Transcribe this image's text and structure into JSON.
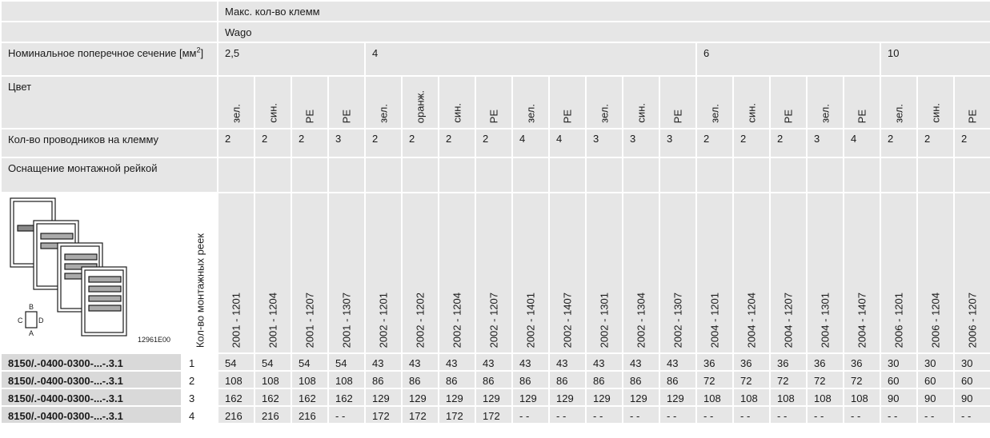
{
  "header": {
    "max_terminals": "Макс. кол-во клемм",
    "brand": "Wago"
  },
  "rows": {
    "cross_section_label": "Номинальное поперечное сечение [мм",
    "cross_section_sup": "2",
    "cross_section_end": "]",
    "color_label": "Цвет",
    "conductors_label": "Кол-во проводников на клемму",
    "rail_equipment_label": "Оснащение монтажной рейкой",
    "rails_count_label": "Кол-во монтажных реек"
  },
  "sections": [
    "2,5",
    "4",
    "6",
    "10"
  ],
  "columns": [
    {
      "color": "зел.",
      "conductors": "2",
      "code": "2001 - 1201"
    },
    {
      "color": "син.",
      "conductors": "2",
      "code": "2001 - 1204"
    },
    {
      "color": "PE",
      "conductors": "2",
      "code": "2001 - 1207"
    },
    {
      "color": "PE",
      "conductors": "3",
      "code": "2001 - 1307"
    },
    {
      "color": "зел.",
      "conductors": "2",
      "code": "2002 - 1201"
    },
    {
      "color": "оранж.",
      "conductors": "2",
      "code": "2002 - 1202"
    },
    {
      "color": "син.",
      "conductors": "2",
      "code": "2002 - 1204"
    },
    {
      "color": "PE",
      "conductors": "2",
      "code": "2002 - 1207"
    },
    {
      "color": "зел.",
      "conductors": "4",
      "code": "2002 - 1401"
    },
    {
      "color": "PE",
      "conductors": "4",
      "code": "2002 - 1407"
    },
    {
      "color": "зел.",
      "conductors": "3",
      "code": "2002 - 1301"
    },
    {
      "color": "син.",
      "conductors": "3",
      "code": "2002 - 1304"
    },
    {
      "color": "PE",
      "conductors": "3",
      "code": "2002 - 1307"
    },
    {
      "color": "зел.",
      "conductors": "2",
      "code": "2004 - 1201"
    },
    {
      "color": "син.",
      "conductors": "2",
      "code": "2004 - 1204"
    },
    {
      "color": "PE",
      "conductors": "2",
      "code": "2004 - 1207"
    },
    {
      "color": "зел.",
      "conductors": "3",
      "code": "2004 - 1301"
    },
    {
      "color": "PE",
      "conductors": "4",
      "code": "2004 - 1407"
    },
    {
      "color": "зел.",
      "conductors": "2",
      "code": "2006 - 1201"
    },
    {
      "color": "син.",
      "conductors": "2",
      "code": "2006 - 1204"
    },
    {
      "color": "PE",
      "conductors": "2",
      "code": "2006 - 1207"
    }
  ],
  "figure": {
    "id": "12961E00",
    "label_a": "A",
    "label_b": "B",
    "label_c": "C",
    "label_d": "D"
  },
  "data_rows": [
    {
      "code": "8150/.-0400-0300-...-.3.1",
      "rails": "1",
      "values": [
        "54",
        "54",
        "54",
        "54",
        "43",
        "43",
        "43",
        "43",
        "43",
        "43",
        "43",
        "43",
        "43",
        "36",
        "36",
        "36",
        "36",
        "36",
        "30",
        "30",
        "30"
      ]
    },
    {
      "code": "8150/.-0400-0300-...-.3.1",
      "rails": "2",
      "values": [
        "108",
        "108",
        "108",
        "108",
        "86",
        "86",
        "86",
        "86",
        "86",
        "86",
        "86",
        "86",
        "86",
        "72",
        "72",
        "72",
        "72",
        "72",
        "60",
        "60",
        "60"
      ]
    },
    {
      "code": "8150/.-0400-0300-...-.3.1",
      "rails": "3",
      "values": [
        "162",
        "162",
        "162",
        "162",
        "129",
        "129",
        "129",
        "129",
        "129",
        "129",
        "129",
        "129",
        "129",
        "108",
        "108",
        "108",
        "108",
        "108",
        "90",
        "90",
        "90"
      ]
    },
    {
      "code": "8150/.-0400-0300-...-.3.1",
      "rails": "4",
      "values": [
        "216",
        "216",
        "216",
        "- -",
        "172",
        "172",
        "172",
        "172",
        "- -",
        "- -",
        "- -",
        "- -",
        "- -",
        "- -",
        "- -",
        "- -",
        "- -",
        "- -",
        "- -",
        "- -",
        "- -"
      ]
    }
  ]
}
